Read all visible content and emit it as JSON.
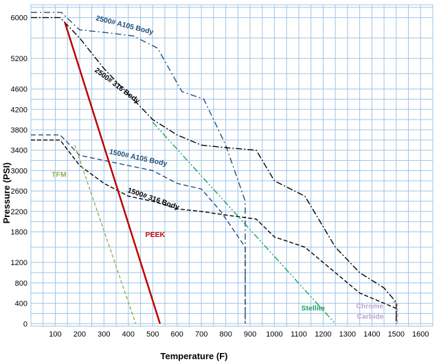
{
  "chart_data": {
    "type": "line",
    "title": "",
    "xlabel": "Temperature (F)",
    "ylabel": "Pressure (PSI)",
    "xlim": [
      0,
      1650
    ],
    "ylim": [
      -50,
      6250
    ],
    "grid": true,
    "x_ticks": [
      100,
      200,
      300,
      400,
      500,
      600,
      700,
      800,
      900,
      1000,
      1100,
      1200,
      1300,
      1400,
      1500,
      1600
    ],
    "y_ticks": [
      0,
      400,
      800,
      1200,
      1800,
      2200,
      2600,
      3000,
      3400,
      3800,
      4200,
      4600,
      5200,
      6000
    ],
    "series": [
      {
        "name": "2500# A105 Body",
        "color": "#1f4e79",
        "dash": "9,4,2,4",
        "points": [
          [
            0,
            6100
          ],
          [
            125,
            6100
          ],
          [
            200,
            5760
          ],
          [
            320,
            5700
          ],
          [
            420,
            5640
          ],
          [
            520,
            5400
          ],
          [
            620,
            4550
          ],
          [
            710,
            4400
          ],
          [
            800,
            3500
          ],
          [
            880,
            2400
          ],
          [
            880,
            0
          ]
        ]
      },
      {
        "name": "2500# 316 Body",
        "color": "#000000",
        "dash": "9,3,2,3",
        "points": [
          [
            0,
            6000
          ],
          [
            120,
            6000
          ],
          [
            200,
            5600
          ],
          [
            300,
            5000
          ],
          [
            400,
            4500
          ],
          [
            500,
            4000
          ],
          [
            600,
            3700
          ],
          [
            700,
            3500
          ],
          [
            800,
            3450
          ],
          [
            925,
            3400
          ],
          [
            1000,
            2800
          ],
          [
            1125,
            2500
          ],
          [
            1250,
            1500
          ],
          [
            1350,
            1000
          ],
          [
            1450,
            700
          ],
          [
            1500,
            420
          ],
          [
            1500,
            0
          ]
        ]
      },
      {
        "name": "1500# A105 Body",
        "color": "#1f4e79",
        "dash": "7,4",
        "points": [
          [
            0,
            3700
          ],
          [
            120,
            3700
          ],
          [
            200,
            3300
          ],
          [
            300,
            3200
          ],
          [
            400,
            3100
          ],
          [
            500,
            3000
          ],
          [
            600,
            2750
          ],
          [
            700,
            2640
          ],
          [
            780,
            2200
          ],
          [
            880,
            1500
          ],
          [
            880,
            0
          ]
        ]
      },
      {
        "name": "1500# 316 Body",
        "color": "#000000",
        "dash": "6,3",
        "points": [
          [
            0,
            3600
          ],
          [
            120,
            3600
          ],
          [
            200,
            3100
          ],
          [
            300,
            2750
          ],
          [
            400,
            2500
          ],
          [
            500,
            2400
          ],
          [
            600,
            2250
          ],
          [
            700,
            2200
          ],
          [
            800,
            2130
          ],
          [
            925,
            2050
          ],
          [
            1000,
            1700
          ],
          [
            1125,
            1500
          ],
          [
            1250,
            1000
          ],
          [
            1350,
            600
          ],
          [
            1450,
            400
          ],
          [
            1500,
            300
          ],
          [
            1500,
            0
          ]
        ]
      },
      {
        "name": "PEEK",
        "color": "#c00000",
        "dash": "",
        "width": 2.5,
        "points": [
          [
            140,
            5900
          ],
          [
            530,
            0
          ]
        ]
      },
      {
        "name": "TFM",
        "color": "#8fb04a",
        "dash": "5,3",
        "points": [
          [
            180,
            3500
          ],
          [
            430,
            0
          ]
        ]
      },
      {
        "name": "Stellite",
        "color": "#18a05a",
        "dash": "9,3,2,3,2,3",
        "points": [
          [
            500,
            3950
          ],
          [
            1250,
            0
          ]
        ]
      },
      {
        "name": "Chrome Carbide",
        "color": "#b8a8cc",
        "dash": "5,3",
        "points": [
          [
            1485,
            420
          ],
          [
            1505,
            420
          ],
          [
            1505,
            0
          ]
        ]
      }
    ],
    "annotations": [
      {
        "text": "2500# A105 Body",
        "color": "#1f4e79",
        "x": 265,
        "y": 5950,
        "angle": 14
      },
      {
        "text": "2500# 316 Body",
        "color": "#000000",
        "x": 260,
        "y": 4950,
        "angle": 37
      },
      {
        "text": "1500# A105 Body",
        "color": "#1f4e79",
        "x": 320,
        "y": 3330,
        "angle": 12
      },
      {
        "text": "1500# 316 Body",
        "color": "#000000",
        "x": 395,
        "y": 2580,
        "angle": 19
      },
      {
        "text": "TFM",
        "color": "#8fb04a",
        "x": 85,
        "y": 2880,
        "angle": 0
      },
      {
        "text": "PEEK",
        "color": "#c00000",
        "x": 470,
        "y": 1700,
        "angle": 0
      },
      {
        "text": "Stellite",
        "color": "#18a05a",
        "x": 1110,
        "y": 260,
        "angle": 0
      },
      {
        "text": "Chrome",
        "color": "#b8a8cc",
        "x": 1335,
        "y": 300,
        "angle": 0
      },
      {
        "text": "Carbide",
        "color": "#b8a8cc",
        "x": 1338,
        "y": 100,
        "angle": 0
      }
    ]
  }
}
